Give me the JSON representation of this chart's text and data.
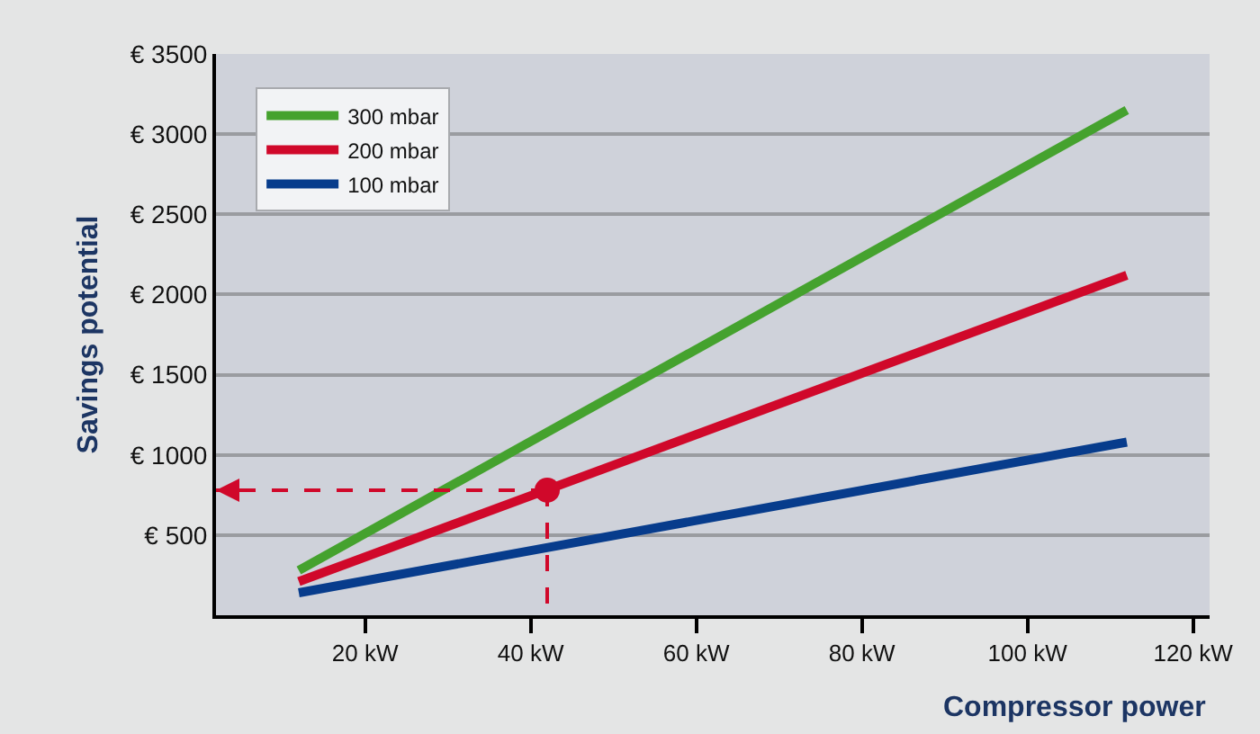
{
  "chart_data": {
    "type": "line",
    "xlabel": "Compressor power",
    "ylabel": "Savings potential",
    "xlim": [
      2,
      122
    ],
    "ylim": [
      0,
      3500
    ],
    "xticks": [
      {
        "value": 20,
        "label": "20 kW"
      },
      {
        "value": 40,
        "label": "40 kW"
      },
      {
        "value": 60,
        "label": "60 kW"
      },
      {
        "value": 80,
        "label": "80 kW"
      },
      {
        "value": 100,
        "label": "100 kW"
      },
      {
        "value": 120,
        "label": "120 kW"
      }
    ],
    "yticks": [
      {
        "value": 500,
        "label": "€ 500"
      },
      {
        "value": 1000,
        "label": "€ 1000"
      },
      {
        "value": 1500,
        "label": "€ 1500"
      },
      {
        "value": 2000,
        "label": "€ 2000"
      },
      {
        "value": 2500,
        "label": "€ 2500"
      },
      {
        "value": 3000,
        "label": "€ 3000"
      },
      {
        "value": 3500,
        "label": "€ 3500"
      }
    ],
    "grid": "y",
    "legend": "top left",
    "marker": "none",
    "line_style": "solid",
    "series": [
      {
        "name": "300 mbar",
        "color": "#45a22e",
        "x": [
          12,
          112
        ],
        "values": [
          280,
          3150
        ]
      },
      {
        "name": "200 mbar",
        "color": "#d0082a",
        "x": [
          12,
          112
        ],
        "values": [
          210,
          2120
        ]
      },
      {
        "name": "100 mbar",
        "color": "#073c8c",
        "x": [
          12,
          112
        ],
        "values": [
          140,
          1080
        ]
      },
      {
        "type": "line",
        "color": "#d0082a",
        "line_style": "dashed",
        "marker": "none",
        "x": [
          42,
          42
        ],
        "values": [
          780,
          0
        ]
      },
      {
        "type": "scatter",
        "color": "#d0082a",
        "marker": "circle",
        "x": [
          42
        ],
        "values": [
          780
        ]
      }
    ]
  }
}
